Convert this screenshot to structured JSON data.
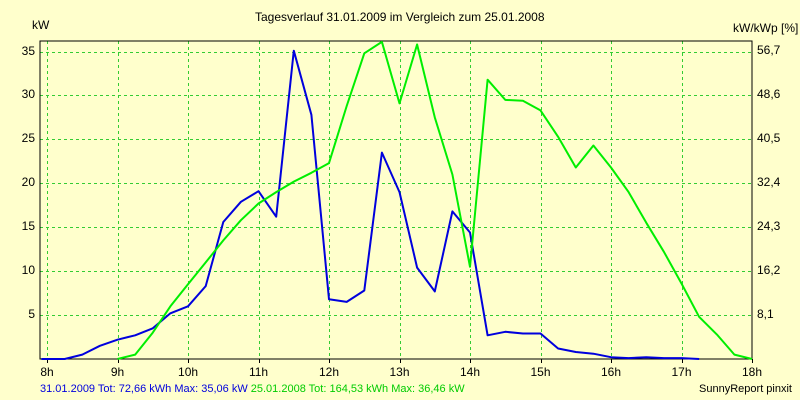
{
  "chart_data": {
    "type": "line",
    "title": "Tagesverlauf 31.01.2009 im Vergleich zum 25.01.2008",
    "ylabel": "kW",
    "y2label": "kW/kWp [%]",
    "ylim": [
      0,
      36.2
    ],
    "y2lim": [
      0,
      58.6
    ],
    "yticks": [
      5,
      10,
      15,
      20,
      25,
      30,
      35
    ],
    "y2ticks": [
      "8,1",
      "16,2",
      "24,3",
      "32,4",
      "40,5",
      "48,6",
      "56,7"
    ],
    "y2tick_values": [
      8.1,
      16.2,
      24.3,
      32.4,
      40.5,
      48.6,
      56.7
    ],
    "xlim": [
      7.9,
      18.0
    ],
    "xticks": [
      8,
      9,
      10,
      11,
      12,
      13,
      14,
      15,
      16,
      17,
      18
    ],
    "xtick_labels": [
      "8h",
      "9h",
      "10h",
      "11h",
      "12h",
      "13h",
      "14h",
      "15h",
      "16h",
      "17h",
      "18h"
    ],
    "grid": true,
    "series": [
      {
        "name": "31.01.2009",
        "color": "#0000dd",
        "points": [
          [
            7.92,
            0
          ],
          [
            8.25,
            0
          ],
          [
            8.5,
            0.5
          ],
          [
            8.75,
            1.5
          ],
          [
            9.0,
            2.2
          ],
          [
            9.25,
            2.7
          ],
          [
            9.5,
            3.5
          ],
          [
            9.75,
            5.2
          ],
          [
            10.0,
            6.0
          ],
          [
            10.25,
            8.3
          ],
          [
            10.5,
            15.6
          ],
          [
            10.75,
            17.9
          ],
          [
            11.0,
            19.1
          ],
          [
            11.25,
            16.2
          ],
          [
            11.5,
            35.1
          ],
          [
            11.75,
            27.8
          ],
          [
            12.0,
            6.8
          ],
          [
            12.25,
            6.5
          ],
          [
            12.5,
            7.8
          ],
          [
            12.75,
            23.5
          ],
          [
            13.0,
            19.0
          ],
          [
            13.25,
            10.4
          ],
          [
            13.5,
            7.7
          ],
          [
            13.75,
            16.8
          ],
          [
            14.0,
            14.4
          ],
          [
            14.25,
            2.7
          ],
          [
            14.5,
            3.1
          ],
          [
            14.75,
            2.9
          ],
          [
            15.0,
            2.9
          ],
          [
            15.25,
            1.2
          ],
          [
            15.5,
            0.8
          ],
          [
            15.75,
            0.6
          ],
          [
            16.0,
            0.2
          ],
          [
            16.25,
            0.1
          ],
          [
            16.5,
            0.2
          ],
          [
            16.75,
            0.1
          ],
          [
            17.0,
            0.1
          ],
          [
            17.25,
            0
          ]
        ]
      },
      {
        "name": "25.01.2008",
        "color": "#00ee00",
        "points": [
          [
            9.0,
            0
          ],
          [
            9.25,
            0.5
          ],
          [
            9.5,
            3.0
          ],
          [
            9.75,
            6.0
          ],
          [
            10.0,
            8.5
          ],
          [
            10.25,
            11.0
          ],
          [
            10.5,
            13.5
          ],
          [
            10.75,
            15.8
          ],
          [
            11.0,
            17.7
          ],
          [
            11.25,
            19.0
          ],
          [
            11.5,
            20.2
          ],
          [
            11.75,
            21.2
          ],
          [
            12.0,
            22.3
          ],
          [
            12.25,
            28.8
          ],
          [
            12.5,
            34.8
          ],
          [
            12.75,
            36.1
          ],
          [
            13.0,
            29.1
          ],
          [
            13.25,
            35.8
          ],
          [
            13.5,
            27.5
          ],
          [
            13.75,
            21.0
          ],
          [
            14.0,
            10.5
          ],
          [
            14.25,
            31.8
          ],
          [
            14.5,
            29.5
          ],
          [
            14.75,
            29.4
          ],
          [
            15.0,
            28.3
          ],
          [
            15.25,
            25.3
          ],
          [
            15.5,
            21.8
          ],
          [
            15.75,
            24.3
          ],
          [
            16.0,
            21.8
          ],
          [
            16.25,
            19.0
          ],
          [
            16.5,
            15.5
          ],
          [
            16.75,
            12.2
          ],
          [
            17.0,
            8.6
          ],
          [
            17.25,
            4.8
          ],
          [
            17.5,
            2.8
          ],
          [
            17.75,
            0.5
          ],
          [
            18.0,
            0
          ]
        ]
      }
    ],
    "footer": {
      "series1_text": "31.01.2009 Tot: 72,66 kWh Max: 35,06 kW",
      "series2_text": "25.01.2008 Tot: 164,53 kWh Max: 36,46 kW",
      "credit": "SunnyReport pinxit"
    }
  }
}
